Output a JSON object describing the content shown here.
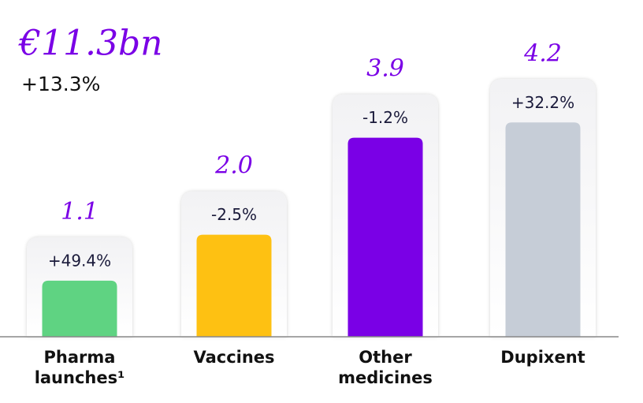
{
  "chart_data": {
    "type": "bar",
    "title": "€11.3bn",
    "subtitle": "+13.3%",
    "categories": [
      "Pharma launches¹",
      "Vaccines",
      "Other medicines",
      "Dupixent"
    ],
    "values": [
      1.1,
      2.0,
      3.9,
      4.2
    ],
    "value_labels": [
      "1.1",
      "2.0",
      "3.9",
      "4.2"
    ],
    "growth_labels": [
      "+49.4%",
      "-2.5%",
      "-1.2%",
      "+32.2%"
    ],
    "colors": [
      "#5fd382",
      "#fec112",
      "#7a00e6",
      "#c6cdd7"
    ],
    "ylim": [
      0,
      6.6
    ]
  }
}
